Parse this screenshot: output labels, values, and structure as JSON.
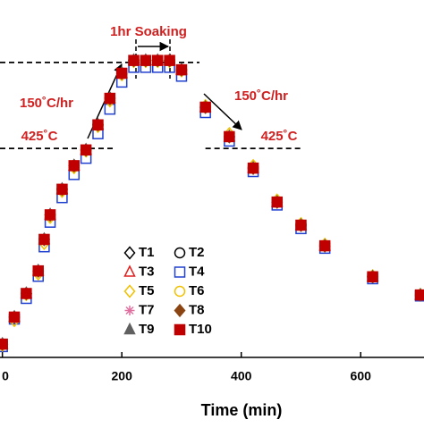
{
  "chart_data": {
    "type": "scatter",
    "xlabel": "Time (min)",
    "xlim": [
      -4,
      706
    ],
    "xticks": [
      0,
      200,
      400,
      600
    ],
    "ylim": [
      0,
      727
    ],
    "x": [
      0,
      20,
      40,
      60,
      70,
      80,
      100,
      120,
      140,
      160,
      180,
      200,
      220,
      240,
      260,
      280,
      300,
      340,
      380,
      420,
      460,
      500,
      540,
      620,
      700
    ],
    "series": [
      {
        "name": "T1",
        "marker": "diamond",
        "filled": false,
        "color": "#000000",
        "values": [
          27,
          82,
          130,
          176,
          240,
          290,
          342,
          390,
          422,
          473,
          527,
          578,
          604,
          604,
          604,
          604,
          585,
          509,
          449,
          385,
          316,
          269,
          227,
          164,
          127
        ]
      },
      {
        "name": "T2",
        "marker": "circle",
        "filled": false,
        "color": "#000000",
        "values": [
          27,
          82,
          130,
          176,
          240,
          290,
          342,
          390,
          422,
          473,
          527,
          578,
          604,
          604,
          604,
          604,
          585,
          509,
          449,
          385,
          316,
          269,
          227,
          164,
          127
        ]
      },
      {
        "name": "T3",
        "marker": "triangle",
        "filled": false,
        "color": "#e02020",
        "values": [
          27,
          82,
          130,
          176,
          240,
          290,
          342,
          390,
          422,
          473,
          527,
          578,
          604,
          604,
          604,
          604,
          585,
          509,
          449,
          385,
          316,
          269,
          227,
          164,
          127
        ]
      },
      {
        "name": "T4",
        "marker": "square",
        "filled": false,
        "color": "#2040d0",
        "values": [
          22,
          78,
          120,
          165,
          225,
          275,
          325,
          372,
          405,
          455,
          505,
          560,
          590,
          590,
          590,
          590,
          572,
          498,
          440,
          378,
          310,
          262,
          222,
          160,
          125
        ]
      },
      {
        "name": "T5",
        "marker": "diamond",
        "filled": false,
        "color": "#f0c000",
        "values": [
          25,
          75,
          128,
          170,
          232,
          285,
          338,
          386,
          420,
          470,
          522,
          575,
          602,
          602,
          602,
          602,
          583,
          512,
          455,
          390,
          320,
          272,
          230,
          166,
          128
        ]
      },
      {
        "name": "T6",
        "marker": "circle",
        "filled": false,
        "color": "#f0c000",
        "values": [
          27,
          82,
          130,
          176,
          240,
          290,
          342,
          390,
          422,
          473,
          527,
          578,
          604,
          604,
          604,
          604,
          585,
          509,
          449,
          385,
          316,
          269,
          227,
          164,
          127
        ]
      },
      {
        "name": "T7",
        "marker": "asterisk",
        "filled": false,
        "color": "#e070a0",
        "values": [
          27,
          82,
          130,
          176,
          240,
          290,
          342,
          390,
          422,
          473,
          527,
          578,
          604,
          604,
          604,
          604,
          585,
          509,
          449,
          385,
          316,
          269,
          227,
          164,
          127
        ]
      },
      {
        "name": "T8",
        "marker": "diamond",
        "filled": true,
        "color": "#8b4513",
        "values": [
          27,
          82,
          130,
          176,
          240,
          290,
          342,
          390,
          422,
          473,
          527,
          578,
          604,
          604,
          604,
          604,
          585,
          509,
          449,
          385,
          316,
          269,
          227,
          164,
          127
        ]
      },
      {
        "name": "T9",
        "marker": "triangle",
        "filled": true,
        "color": "#606060",
        "values": [
          27,
          82,
          130,
          176,
          240,
          290,
          342,
          390,
          422,
          473,
          527,
          578,
          604,
          604,
          604,
          604,
          585,
          509,
          449,
          385,
          316,
          269,
          227,
          164,
          127
        ]
      },
      {
        "name": "T10",
        "marker": "square",
        "filled": true,
        "color": "#c00000",
        "values": [
          27,
          82,
          130,
          176,
          240,
          290,
          342,
          390,
          422,
          473,
          527,
          578,
          604,
          604,
          604,
          604,
          585,
          509,
          449,
          385,
          316,
          269,
          227,
          164,
          127
        ]
      }
    ],
    "annotations": [
      "1hr Soaking",
      "150˚C/hr",
      "150˚C/hr",
      "425˚C",
      "425˚C"
    ],
    "reference_lines": [
      {
        "y": 600,
        "x": [
          -4,
          330
        ]
      },
      {
        "y": 425,
        "x": [
          -4,
          190
        ]
      },
      {
        "y": 425,
        "x": [
          340,
          500
        ]
      }
    ]
  }
}
